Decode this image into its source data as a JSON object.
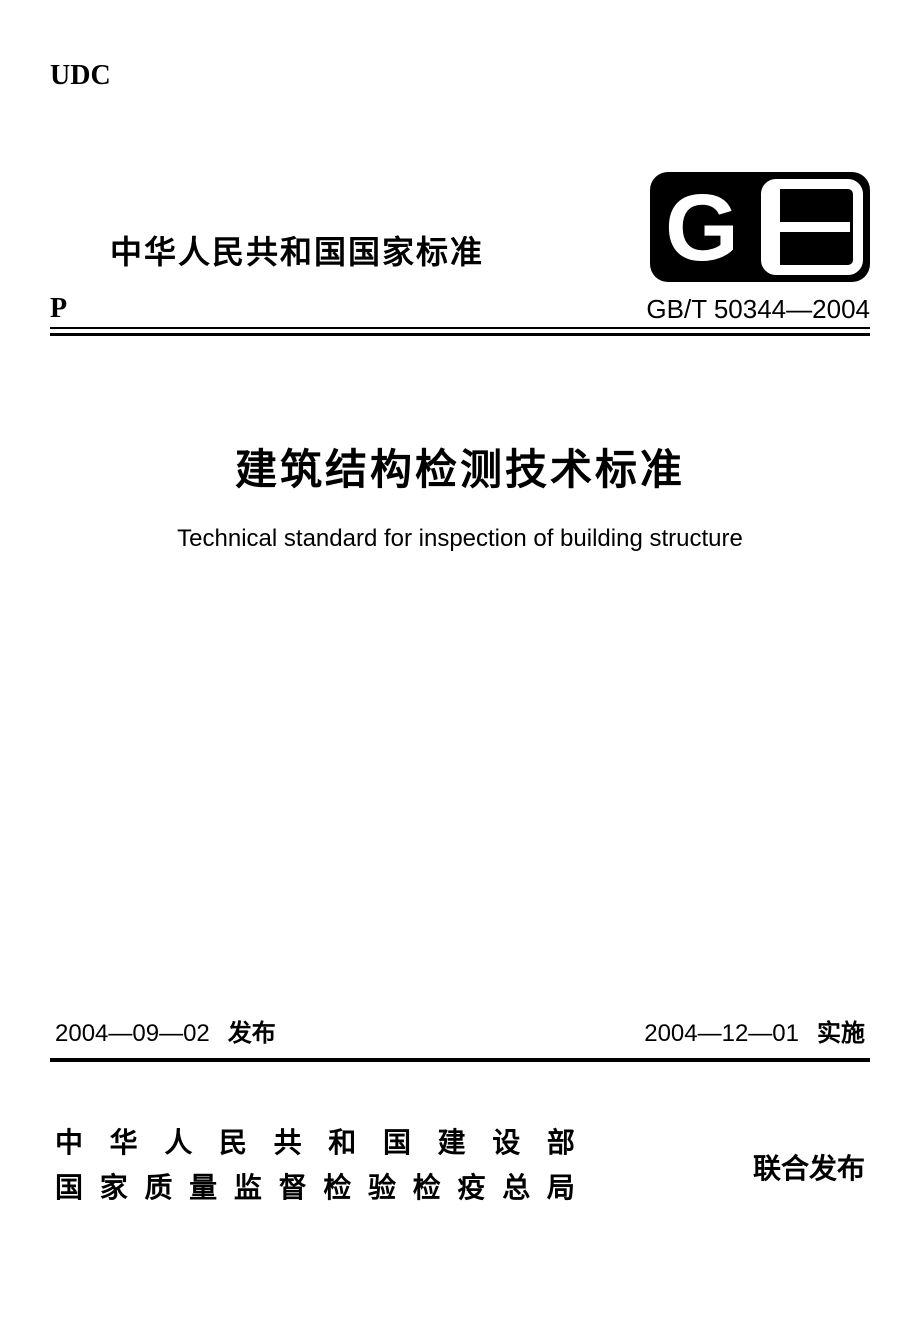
{
  "header": {
    "udc": "UDC",
    "national_standard": "中华人民共和国国家标准",
    "p_label": "P",
    "standard_number": "GB/T 50344—2004"
  },
  "title": {
    "cn": "建筑结构检测技术标准",
    "en": "Technical standard for inspection of building structure"
  },
  "dates": {
    "issue_date": "2004—09—02",
    "issue_label": "发布",
    "effective_date": "2004—12—01",
    "effective_label": "实施"
  },
  "publishers": {
    "line1": "中华人民共和国建设部",
    "line2": "国家质量监督检验检疫总局",
    "joint_label": "联合发布"
  },
  "logo": {
    "text_g": "G",
    "text_b": "B",
    "background_color": "#000000",
    "text_color": "#ffffff"
  },
  "styling": {
    "background_color": "#ffffff",
    "text_color": "#000000",
    "rule_color": "#000000",
    "title_cn_fontsize": 42,
    "title_en_fontsize": 24,
    "national_standard_fontsize": 32,
    "standard_number_fontsize": 26,
    "dates_fontsize": 24,
    "publisher_fontsize": 28,
    "udc_fontsize": 28
  }
}
